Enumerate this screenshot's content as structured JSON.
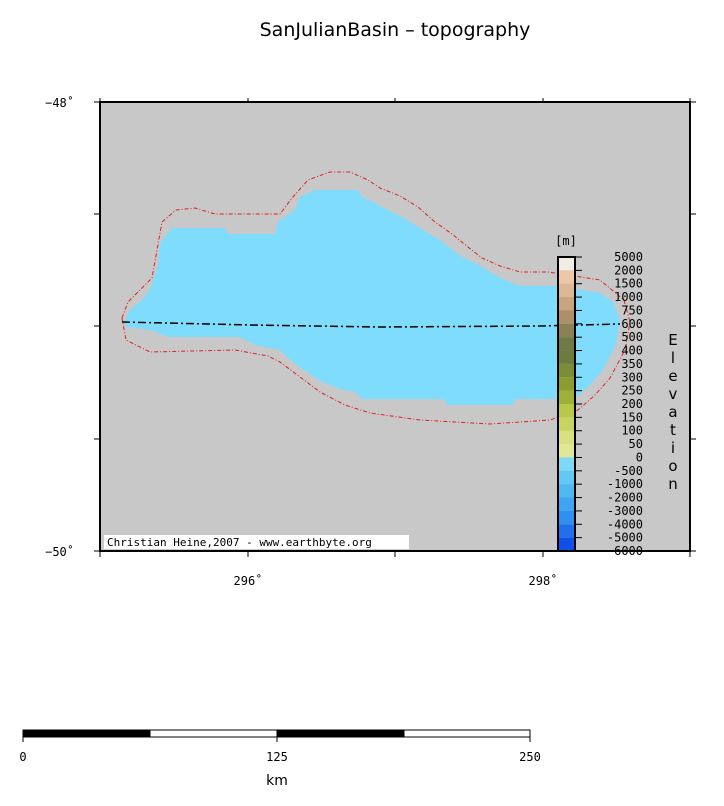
{
  "title": "SanJulianBasin – topography",
  "map": {
    "lat_labels": [
      "−48˚",
      "−50˚"
    ],
    "lon_labels": [
      "296˚",
      "298˚"
    ],
    "credit": "Christian Heine,2007 - www.earthbyte.org"
  },
  "colorbar": {
    "unit": "[m]",
    "title": "Elevation",
    "labels": [
      5000,
      2000,
      1500,
      1000,
      750,
      600,
      500,
      400,
      350,
      300,
      250,
      200,
      150,
      100,
      50,
      0,
      -500,
      -1000,
      -2000,
      -3000,
      -4000,
      -5000,
      -6000
    ],
    "colors": [
      "#f0ece8",
      "#ecc8a8",
      "#dcb898",
      "#c8a480",
      "#ac9068",
      "#8c8058",
      "#707a48",
      "#6c7c40",
      "#7c8c38",
      "#8c9c30",
      "#a0b038",
      "#b8c848",
      "#c8d460",
      "#d8e080",
      "#e0e898",
      "#80d8f8",
      "#64c8f4",
      "#50b8f0",
      "#40a4f0",
      "#3090f0",
      "#2070ec",
      "#1050e8"
    ]
  },
  "scalebar": {
    "labels": [
      "0",
      "125",
      "250"
    ],
    "unit": "km"
  }
}
